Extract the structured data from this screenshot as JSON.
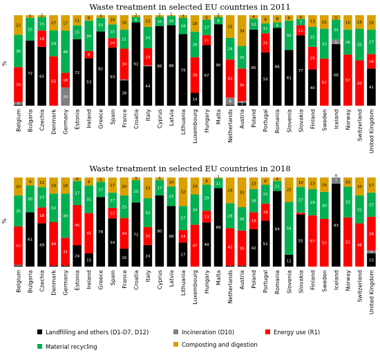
{
  "legend": [
    {
      "key": "landfill",
      "label": "Landfilling and others (D1-D7, D12)",
      "color": "#000000"
    },
    {
      "key": "incineration",
      "label": "Incineration (D10)",
      "color": "#7f7f7f"
    },
    {
      "key": "energy",
      "label": "Energy use (R1)",
      "color": "#ff0000"
    },
    {
      "key": "recycling",
      "label": "Material recycling",
      "color": "#00b050"
    },
    {
      "key": "composting",
      "label": "Composting and digestion",
      "color": "#d9a000"
    }
  ],
  "chart_data": [
    {
      "type": "bar",
      "stacked": true,
      "title": "Waste treatment in selected EU countries in 2011",
      "ylabel": "%",
      "ylim": [
        0,
        100
      ],
      "categories": [
        "Belgium",
        "Bulgaria",
        "Czechia",
        "Denmark",
        "Germany",
        "Estonia",
        "Ireland",
        "Greece",
        "Spain",
        "France",
        "Croatia",
        "Italy",
        "Cyprus",
        "Latvia",
        "Lithuania",
        "Luxembourg",
        "Hungary",
        "Malta",
        "Netherlands",
        "Austria",
        "Poland",
        "Portugal",
        "Romania",
        "Slovenia",
        "Slovakia",
        "Finland",
        "Sweden",
        "Iceland",
        "Norway",
        "Switzerland",
        "United Kingdom"
      ],
      "series": [
        {
          "key": "landfill",
          "name": "Landfilling and others (D1-D7, D12)",
          "values": [
            1,
            72,
            65,
            0,
            0,
            72,
            53,
            82,
            63,
            28,
            92,
            44,
            88,
            88,
            79,
            14,
            67,
            90,
            1,
            3,
            85,
            59,
            86,
            61,
            77,
            40,
            0,
            68,
            0,
            0,
            41
          ]
        },
        {
          "key": "incineration",
          "name": "Incineration (D10)",
          "values": [
            3,
            0,
            0,
            0,
            20,
            0,
            0,
            0,
            0,
            1,
            0,
            1,
            0,
            0,
            0,
            0,
            0,
            0,
            8,
            2,
            0,
            0,
            0,
            0,
            0,
            0,
            0,
            5,
            0,
            0,
            0
          ]
        },
        {
          "key": "energy",
          "name": "Energy use (R1)",
          "values": [
            39,
            0,
            18,
            55,
            16,
            0,
            8,
            0,
            10,
            34,
            0,
            19,
            0,
            0,
            0,
            39,
            11,
            0,
            42,
            36,
            0,
            21,
            0,
            0,
            11,
            25,
            52,
            0,
            57,
            50,
            16
          ]
        },
        {
          "key": "recycling",
          "name": "Material recycling",
          "values": [
            36,
            25,
            15,
            29,
            46,
            15,
            34,
            15,
            15,
            21,
            6,
            24,
            10,
            10,
            18,
            28,
            17,
            8,
            24,
            25,
            12,
            11,
            6,
            32,
            7,
            22,
            33,
            22,
            28,
            35,
            27
          ]
        },
        {
          "key": "composting",
          "name": "Composting and digestion",
          "values": [
            22,
            3,
            2,
            17,
            17,
            11,
            6,
            3,
            10,
            16,
            2,
            13,
            2,
            1,
            3,
            18,
            5,
            2,
            25,
            34,
            4,
            9,
            8,
            6,
            4,
            13,
            15,
            5,
            16,
            15,
            16
          ]
        }
      ]
    },
    {
      "type": "bar",
      "stacked": true,
      "title": "Waste treatment in selected EU countries in 2018",
      "ylabel": "%",
      "ylim": [
        0,
        100
      ],
      "categories": [
        "Belgium",
        "Bulgaria",
        "Czechia",
        "Denmark",
        "Germany",
        "Estonia",
        "Ireland",
        "Greece",
        "Spain",
        "France",
        "Croatia",
        "Italy",
        "Cyprus",
        "Latvia",
        "Lithuania",
        "Luxembourg",
        "Hungary",
        "Malta",
        "Netherlands",
        "Austria",
        "Poland",
        "Portugal",
        "Romania",
        "Slovenia",
        "Slovakia",
        "Finland",
        "Sweden",
        "Iceland",
        "Norway",
        "Switzerland",
        "United Kingdom"
      ],
      "series": [
        {
          "key": "landfill",
          "name": "Landfilling and others (D1-D7, D12)",
          "values": [
            1,
            61,
            49,
            1,
            1,
            24,
            15,
            78,
            54,
            20,
            72,
            24,
            80,
            68,
            27,
            0,
            49,
            89,
            1,
            1,
            42,
            51,
            84,
            12,
            55,
            0,
            0,
            93,
            0,
            0,
            15
          ]
        },
        {
          "key": "incineration",
          "name": "Incineration (D10)",
          "values": [
            1,
            0,
            0,
            0,
            0,
            0,
            0,
            0,
            0,
            0,
            0,
            0,
            0,
            0,
            0,
            0,
            0,
            0,
            0,
            0,
            0,
            0,
            0,
            0,
            0,
            0,
            0,
            7,
            0,
            0,
            3
          ]
        },
        {
          "key": "energy",
          "name": "Energy use (R1)",
          "values": [
            43,
            0,
            18,
            49,
            31,
            45,
            45,
            0,
            12,
            34,
            0,
            20,
            0,
            0,
            14,
            47,
            13,
            0,
            42,
            39,
            19,
            19,
            0,
            0,
            2,
            57,
            53,
            0,
            53,
            48,
            38
          ]
        },
        {
          "key": "recycling",
          "name": "Material recycling",
          "values": [
            35,
            30,
            23,
            32,
            49,
            27,
            31,
            17,
            17,
            25,
            25,
            32,
            17,
            22,
            27,
            34,
            29,
            11,
            28,
            26,
            26,
            21,
            11,
            54,
            27,
            29,
            30,
            0,
            33,
            31,
            27
          ]
        },
        {
          "key": "composting",
          "name": "Composting and digestion",
          "values": [
            20,
            9,
            11,
            18,
            18,
            4,
            9,
            5,
            17,
            20,
            3,
            23,
            3,
            10,
            32,
            19,
            8,
            1,
            29,
            33,
            13,
            8,
            4,
            25,
            10,
            13,
            16,
            0,
            10,
            20,
            17
          ]
        }
      ]
    }
  ]
}
